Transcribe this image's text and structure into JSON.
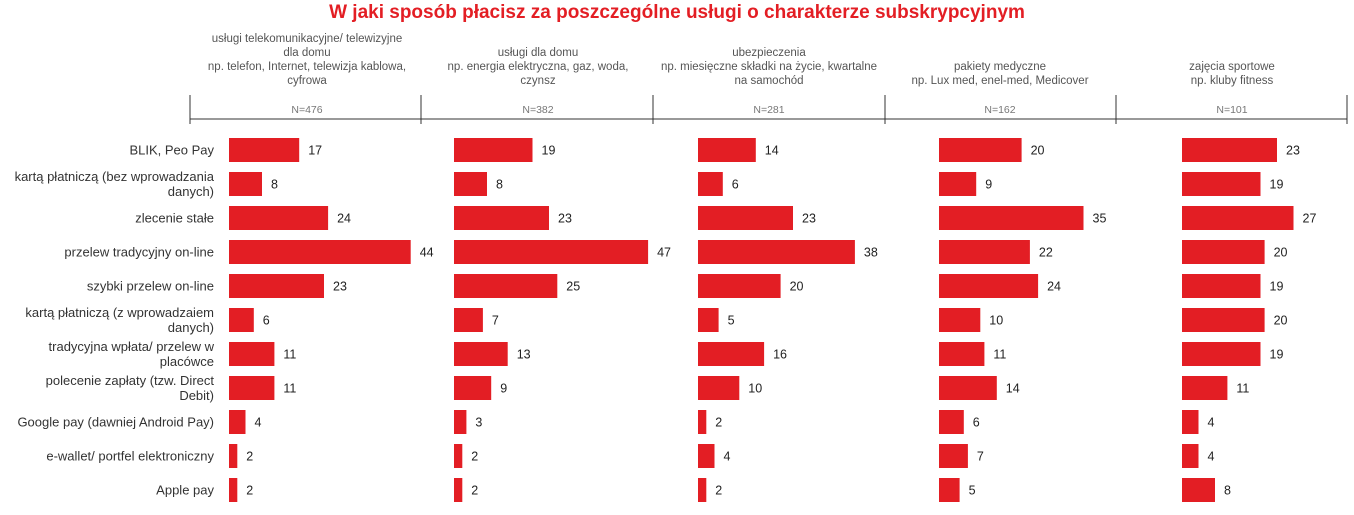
{
  "chart_data": {
    "type": "bar",
    "title": "W jaki sposób płacisz za poszczególne usługi o charakterze subskrypcyjnym",
    "categories": [
      [
        "BLIK, Peo Pay"
      ],
      [
        "kartą płatniczą (bez wprowadzania",
        "danych)"
      ],
      [
        "zlecenie stałe"
      ],
      [
        "przelew tradycyjny on-line"
      ],
      [
        "szybki przelew on-line"
      ],
      [
        "kartą płatniczą (z wprowadzaiem",
        "danych)"
      ],
      [
        "tradycyjna wpłata/ przelew w",
        "placówce"
      ],
      [
        "polecenie zapłaty (tzw. Direct",
        "Debit)"
      ],
      [
        "Google pay (dawniej Android Pay)"
      ],
      [
        "e-wallet/ portfel elektroniczny"
      ],
      [
        "Apple pay"
      ]
    ],
    "series": [
      {
        "name_lines": [
          "usługi telekomunikacyjne/ telewizyjne",
          "dla domu",
          "np. telefon, Internet, telewizja kablowa,",
          "cyfrowa"
        ],
        "n": "N=476",
        "values": [
          17,
          8,
          24,
          44,
          23,
          6,
          11,
          11,
          4,
          2,
          2
        ]
      },
      {
        "name_lines": [
          "usługi dla domu",
          "np. energia elektryczna, gaz, woda,",
          "czynsz"
        ],
        "n": "N=382",
        "values": [
          19,
          8,
          23,
          47,
          25,
          7,
          13,
          9,
          3,
          2,
          2
        ]
      },
      {
        "name_lines": [
          "ubezpieczenia",
          "np. miesięczne składki na życie, kwartalne",
          "na samochód"
        ],
        "n": "N=281",
        "values": [
          14,
          6,
          23,
          38,
          20,
          5,
          16,
          10,
          2,
          4,
          2
        ]
      },
      {
        "name_lines": [
          "pakiety medyczne",
          "np. Lux med, enel-med, Medicover"
        ],
        "n": "N=162",
        "values": [
          20,
          9,
          35,
          22,
          24,
          10,
          11,
          14,
          6,
          7,
          5
        ]
      },
      {
        "name_lines": [
          "zajęcia sportowe",
          "np. kluby fitness"
        ],
        "n": "N=101",
        "values": [
          23,
          19,
          27,
          20,
          19,
          20,
          19,
          11,
          4,
          4,
          8
        ]
      }
    ],
    "unit": "%",
    "color": "#e31e24"
  }
}
